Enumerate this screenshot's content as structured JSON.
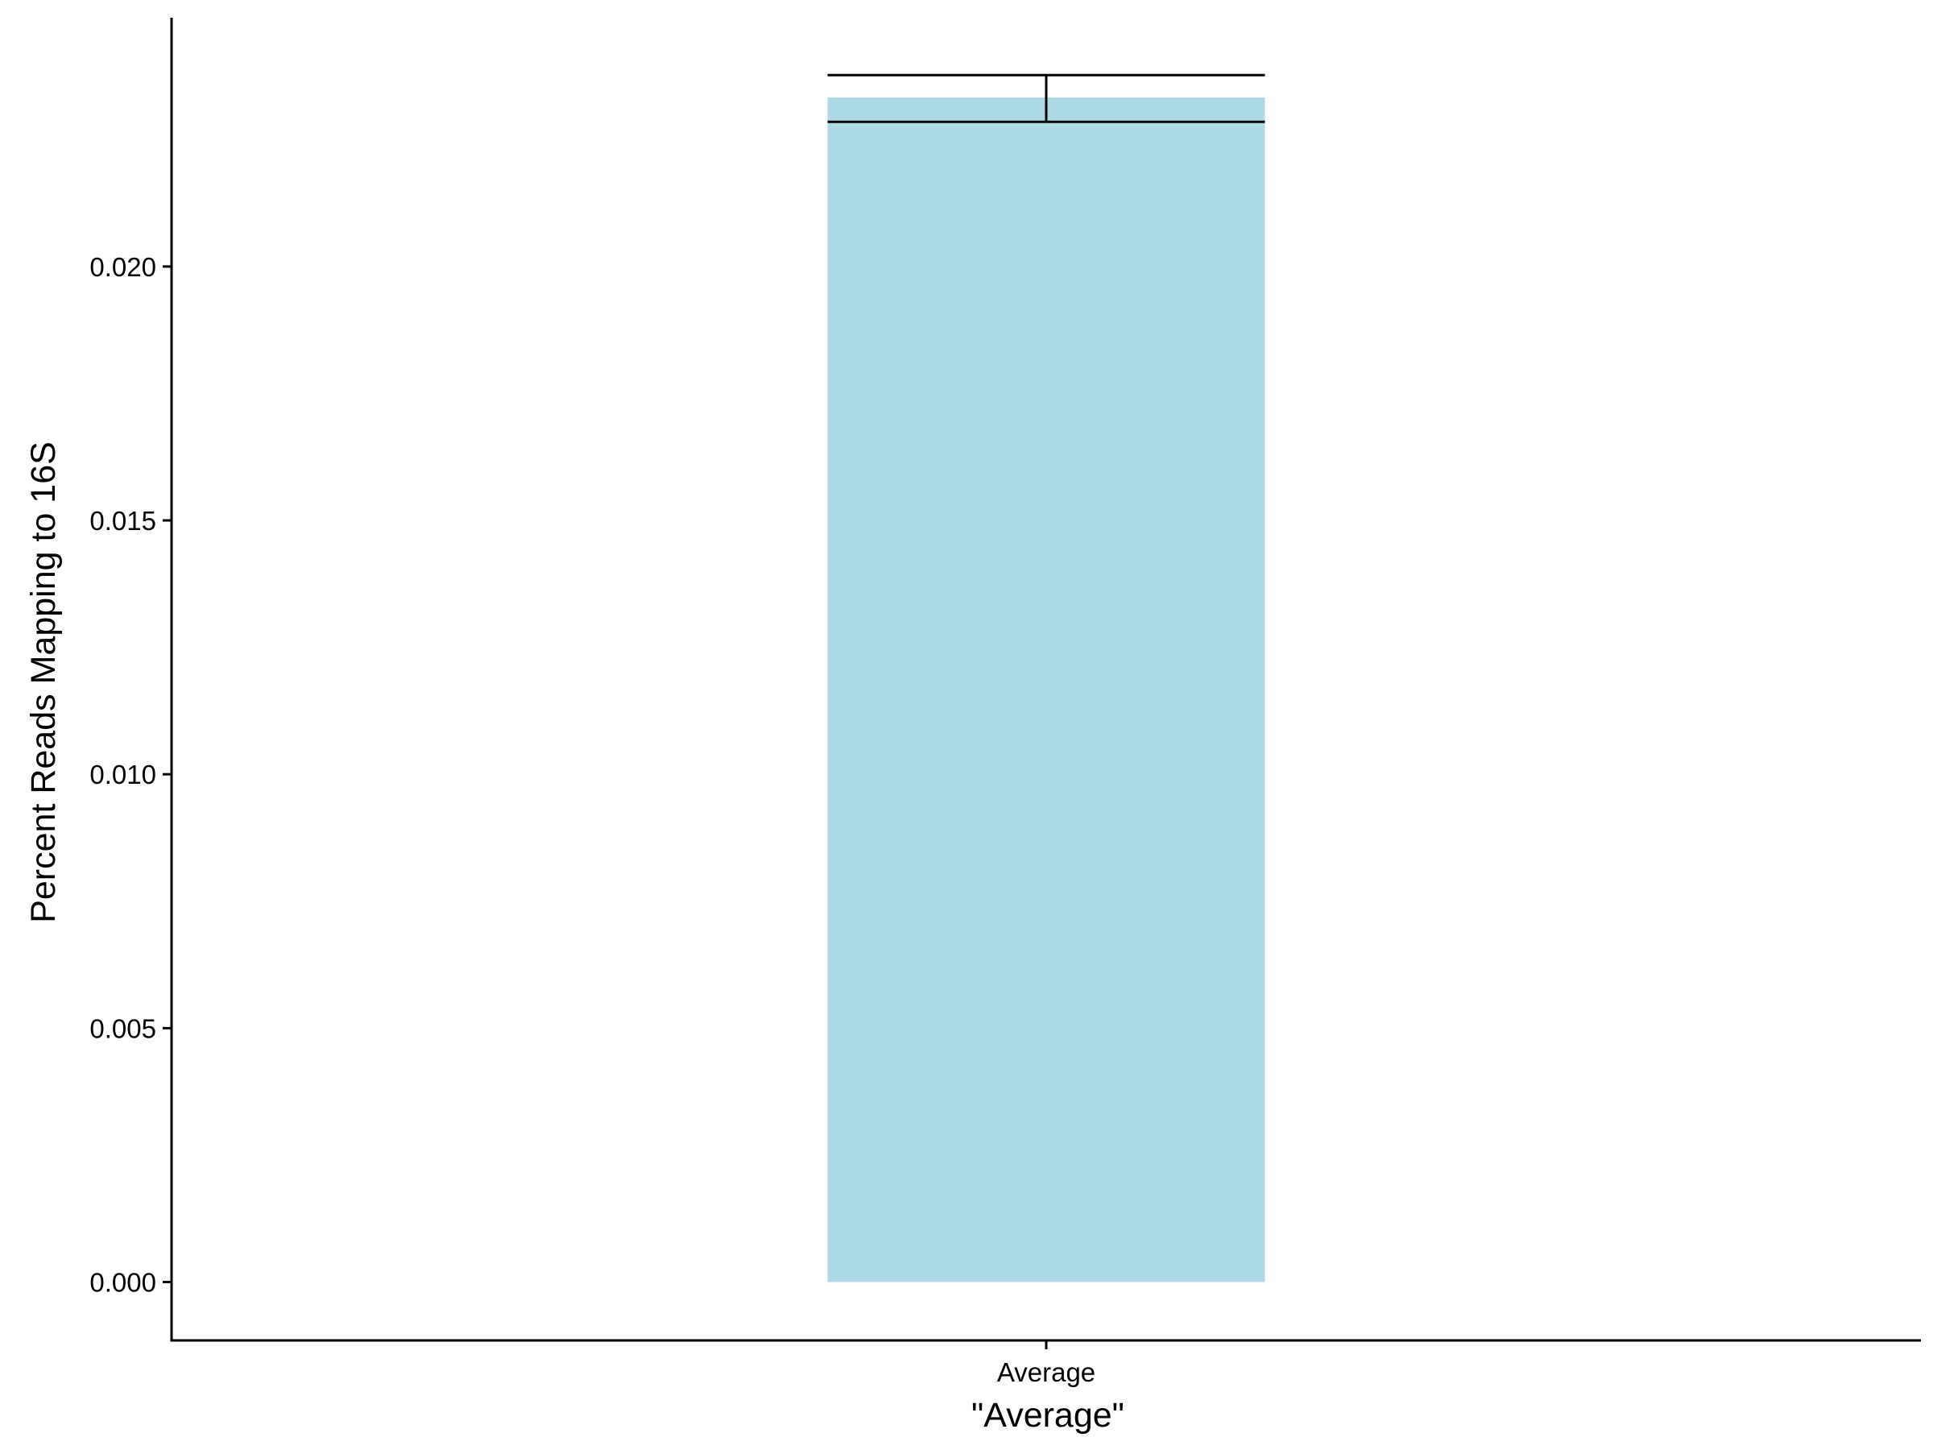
{
  "chart_data": {
    "type": "bar",
    "categories": [
      "Average"
    ],
    "values": [
      0.02333
    ],
    "error_bars": [
      {
        "low": 0.02285,
        "high": 0.02377
      }
    ],
    "xlabel": "\"Average\"",
    "ylabel": "Percent Reads Mapping to 16S",
    "y_ticks": [
      0.0,
      0.005,
      0.01,
      0.015,
      0.02
    ],
    "y_tick_labels": [
      "0.000",
      "0.005",
      "0.010",
      "0.015",
      "0.020"
    ],
    "ylim": [
      -0.00115,
      0.0249
    ],
    "grid": false,
    "legend": "none",
    "colors": {
      "bar": "#add8e6",
      "axis": "#000000",
      "error_bar": "#000000"
    }
  }
}
